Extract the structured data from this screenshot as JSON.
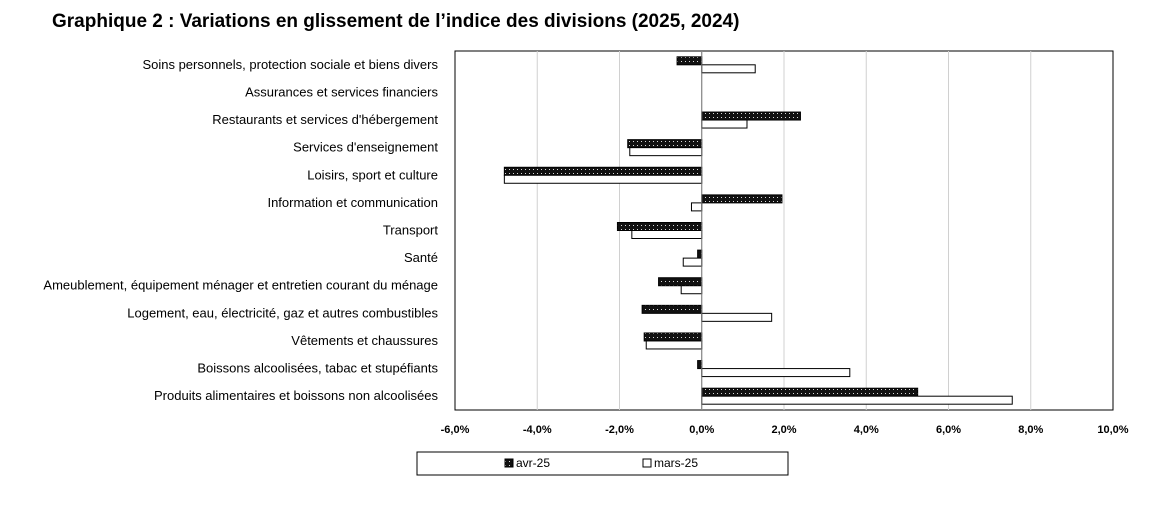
{
  "chart_data": {
    "type": "bar",
    "orientation": "horizontal",
    "title": "Graphique 2 : Variations en glissement de l’indice des divisions (2025, 2024)",
    "categories": [
      "Soins personnels, protection sociale et biens divers",
      "Assurances et services financiers",
      "Restaurants et services d'hébergement",
      "Services d'enseignement",
      "Loisirs, sport et culture",
      "Information et communication",
      "Transport",
      "Santé",
      "Ameublement, équipement ménager et entretien courant du ménage",
      "Logement, eau, électricité, gaz et autres combustibles",
      "Vêtements et chaussures",
      "Boissons alcoolisées, tabac et stupéfiants",
      "Produits alimentaires et boissons non alcoolisées"
    ],
    "series": [
      {
        "name": "avr-25",
        "color": "#1a1a1a",
        "pattern": "dotted-dark",
        "values": [
          -0.6,
          0.0,
          2.4,
          -1.8,
          -4.8,
          1.95,
          -2.05,
          -0.1,
          -1.05,
          -1.45,
          -1.4,
          -0.1,
          5.25
        ]
      },
      {
        "name": "mars-25",
        "color": "#ffffff",
        "pattern": "white",
        "values": [
          1.3,
          0.0,
          1.1,
          -1.75,
          -4.8,
          -0.25,
          -1.7,
          -0.45,
          -0.5,
          1.7,
          -1.35,
          3.6,
          7.55
        ]
      }
    ],
    "xlim": [
      -6,
      10
    ],
    "xticks": [
      "-6,0%",
      "-4,0%",
      "-2,0%",
      "0,0%",
      "2,0%",
      "4,0%",
      "6,0%",
      "8,0%",
      "10,0%"
    ],
    "xlabel": "",
    "ylabel": "",
    "grid": "vertical",
    "legend_position": "bottom"
  }
}
